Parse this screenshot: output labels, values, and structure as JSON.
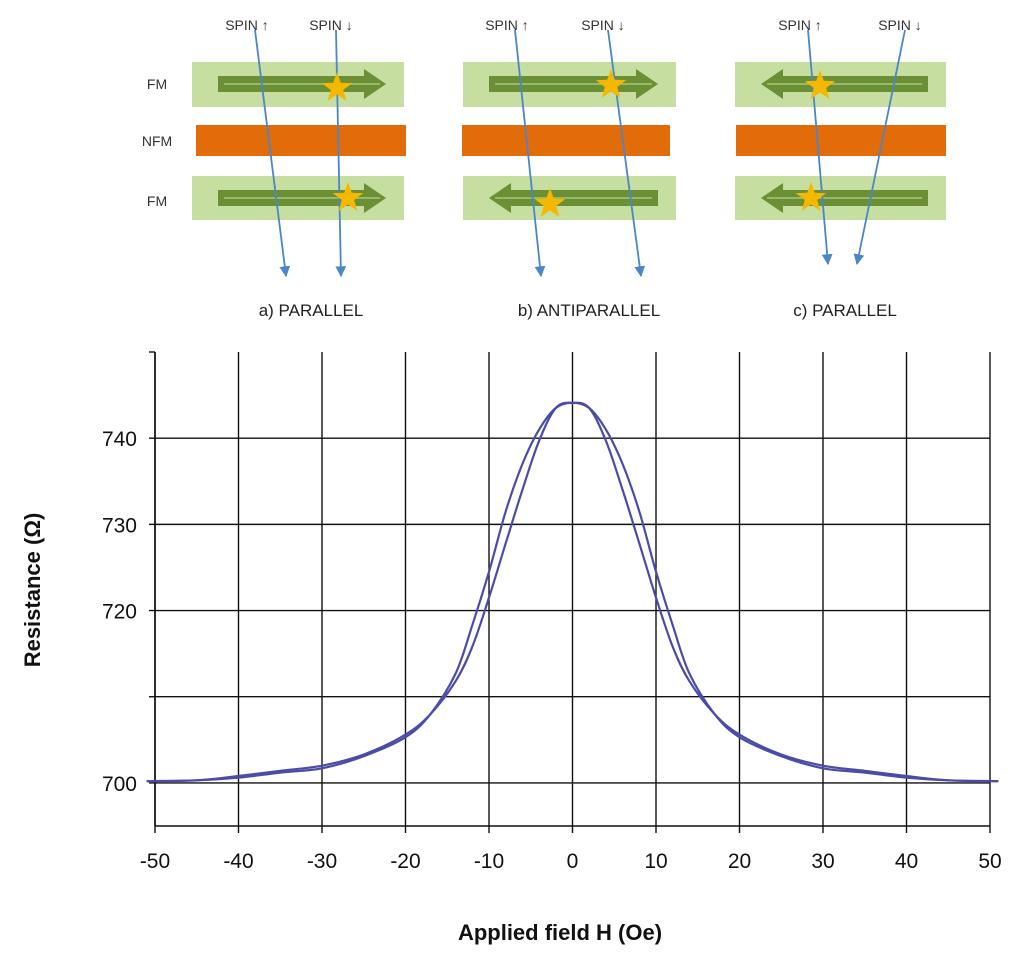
{
  "diagram": {
    "layer_labels": [
      "FM",
      "NFM",
      "FM"
    ],
    "spin_up_label": "SPIN ↑",
    "spin_down_label": "SPIN ↓",
    "colors": {
      "fm_layer": "#c6dea0",
      "nfm_layer": "#e36c0a",
      "magnetization_arrow": "#6a8f34",
      "spin_path": "#4a86c8",
      "scattering_star": "#f5b800"
    },
    "panels": [
      {
        "caption": "a) PARALLEL",
        "top_fm": "right",
        "bottom_fm": "right"
      },
      {
        "caption": "b) ANTIPARALLEL",
        "top_fm": "right",
        "bottom_fm": "left"
      },
      {
        "caption": "c) PARALLEL",
        "top_fm": "left",
        "bottom_fm": "left"
      }
    ]
  },
  "chart_data": {
    "type": "line",
    "title": "",
    "xlabel": "Applied field H (Oe)",
    "ylabel": "Resistance (Ω)",
    "xlim": [
      -50,
      50
    ],
    "ylim": [
      695,
      750
    ],
    "x_ticks": [
      -50,
      -40,
      -30,
      -20,
      -10,
      0,
      10,
      20,
      30,
      40,
      50
    ],
    "y_ticks": [
      700,
      710,
      720,
      730,
      740
    ],
    "y_tick_labels": [
      700,
      720,
      730,
      740
    ],
    "grid": true,
    "line_color": "#4b4ba8",
    "series": [
      {
        "x": [
          -51,
          -45,
          -40,
          -35,
          -30,
          -25,
          -20,
          -17,
          -14,
          -12,
          -10,
          -8,
          -6,
          -4,
          -2,
          0,
          2,
          4,
          6,
          8,
          10,
          12,
          14,
          17,
          20,
          25,
          30,
          35,
          40,
          45,
          51
        ],
        "y": [
          700.2,
          700.3,
          700.8,
          701.4,
          702.0,
          703.3,
          705.6,
          708.0,
          711.8,
          715.8,
          721.5,
          727.8,
          734.0,
          739.7,
          743.5,
          744.1,
          743.5,
          741.0,
          737.0,
          731.5,
          724.5,
          718.3,
          712.7,
          708.0,
          705.3,
          703.1,
          701.7,
          701.2,
          700.6,
          700.3,
          700.2
        ]
      },
      {
        "x": [
          -51,
          -45,
          -40,
          -35,
          -30,
          -25,
          -20,
          -17,
          -14,
          -12,
          -10,
          -8,
          -6,
          -4,
          -2,
          0,
          2,
          4,
          6,
          8,
          10,
          12,
          14,
          17,
          20,
          25,
          30,
          35,
          40,
          45,
          51
        ],
        "y": [
          700.2,
          700.3,
          700.6,
          701.2,
          701.7,
          703.1,
          705.3,
          708.0,
          712.7,
          718.3,
          724.5,
          731.5,
          737.0,
          741.0,
          743.5,
          744.1,
          743.5,
          739.7,
          734.0,
          727.8,
          721.5,
          715.8,
          711.8,
          708.0,
          705.6,
          703.3,
          702.0,
          701.4,
          700.8,
          700.3,
          700.2
        ]
      }
    ]
  }
}
